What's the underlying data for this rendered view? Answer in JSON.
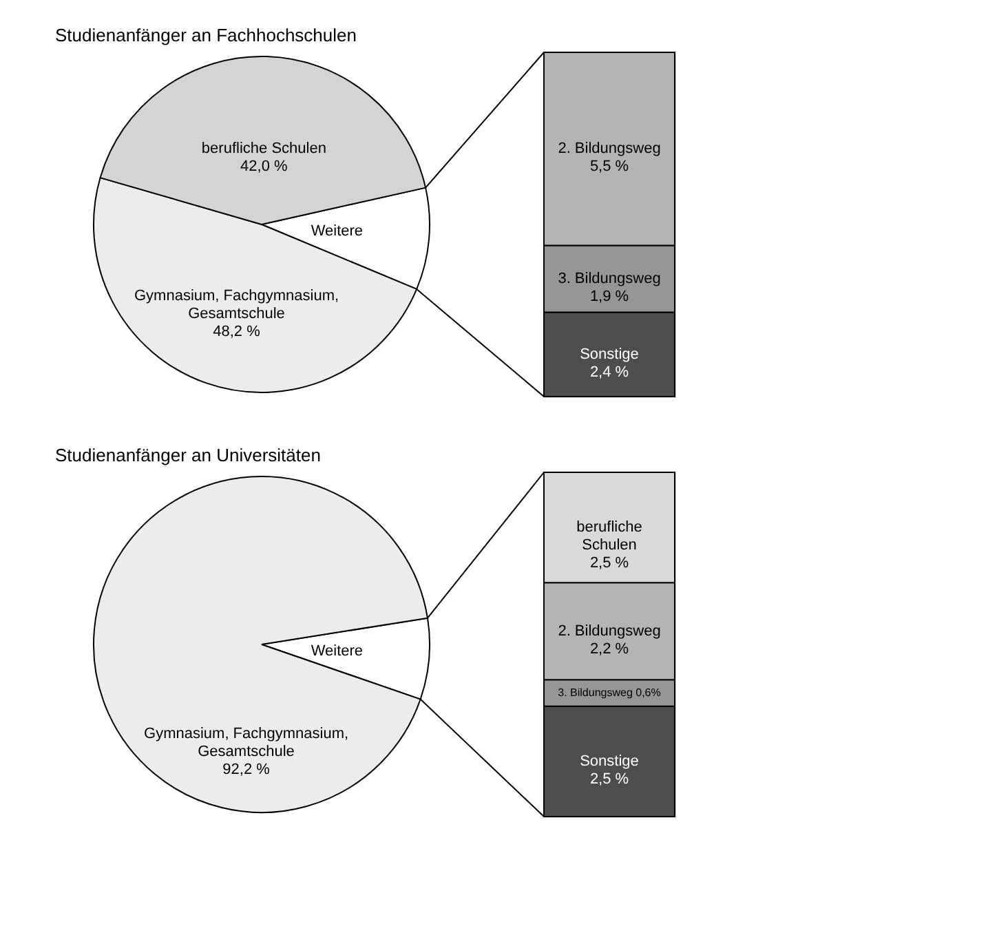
{
  "chart_data": [
    {
      "type": "pie",
      "title": "Studienanfänger an Fachhochschulen",
      "categories": [
        "Weitere",
        "Gymnasium, Fachgymnasium, Gesamtschule",
        "berufliche Schulen"
      ],
      "values": [
        9.8,
        48.2,
        42.0
      ],
      "value_labels": [
        null,
        "48,2 %",
        "42,0 %"
      ],
      "colors": [
        "#ffffff",
        "#ececec",
        "#d4d4d4"
      ]
    },
    {
      "type": "bar",
      "stacked": true,
      "categories": [
        null
      ],
      "series": [
        {
          "name": "Sonstige",
          "color": "#4d4d4d",
          "values": [
            2.4
          ],
          "value_labels": [
            "2,4 %"
          ]
        },
        {
          "name": "3. Bildungsweg",
          "color": "#969696",
          "values": [
            1.9
          ],
          "value_labels": [
            "1,9 %"
          ]
        },
        {
          "name": "2. Bildungsweg",
          "color": "#b4b4b4",
          "values": [
            5.5
          ],
          "value_labels": [
            "5,5 %"
          ]
        }
      ]
    },
    {
      "type": "pie",
      "title": "Studienanfänger an Universitäten",
      "categories": [
        "Weitere",
        "Gymnasium, Fachgymnasium, Gesamtschule"
      ],
      "values": [
        7.8,
        92.2
      ],
      "value_labels": [
        null,
        "92,2 %"
      ],
      "colors": [
        "#ffffff",
        "#ececec"
      ]
    },
    {
      "type": "bar",
      "stacked": true,
      "categories": [
        null
      ],
      "series": [
        {
          "name": "Sonstige",
          "color": "#4d4d4d",
          "values": [
            2.5
          ],
          "value_labels": [
            "2,5 %"
          ]
        },
        {
          "name": "3. Bildungsweg",
          "color": "#969696",
          "values": [
            0.6
          ],
          "value_labels": [
            "0,6%"
          ]
        },
        {
          "name": "2. Bildungsweg",
          "color": "#b4b4b4",
          "values": [
            2.2
          ],
          "value_labels": [
            "2,2 %"
          ]
        },
        {
          "name": "berufliche Schulen",
          "color": "#d9d9d9",
          "values": [
            2.5
          ],
          "value_labels": [
            "2,5 %"
          ]
        }
      ]
    }
  ]
}
